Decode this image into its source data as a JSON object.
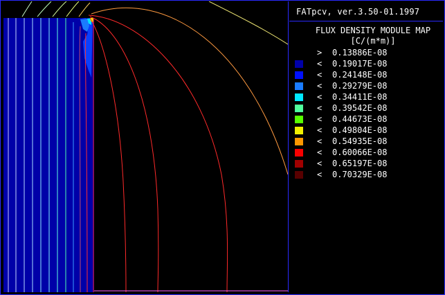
{
  "header": {
    "version": "FATpcv, ver.3.50-01.1997"
  },
  "legend": {
    "title_line1": "FLUX DENSITY MODULE MAP",
    "title_line2": "[C/(m*m)]",
    "entries": [
      {
        "op": ">",
        "value": "0.13886E-08",
        "color": ""
      },
      {
        "op": "<",
        "value": "0.19017E-08",
        "color": "#0000a8"
      },
      {
        "op": "<",
        "value": "0.24148E-08",
        "color": "#0010ff"
      },
      {
        "op": "<",
        "value": "0.29279E-08",
        "color": "#1a7cff"
      },
      {
        "op": "<",
        "value": "0.34411E-08",
        "color": "#00e8ff"
      },
      {
        "op": "<",
        "value": "0.39542E-08",
        "color": "#50ff9c"
      },
      {
        "op": "<",
        "value": "0.44673E-08",
        "color": "#58ff00"
      },
      {
        "op": "<",
        "value": "0.49804E-08",
        "color": "#f0f000"
      },
      {
        "op": "<",
        "value": "0.54935E-08",
        "color": "#ff9800"
      },
      {
        "op": "<",
        "value": "0.60066E-08",
        "color": "#f80000"
      },
      {
        "op": "<",
        "value": "0.65197E-08",
        "color": "#a00000"
      },
      {
        "op": "<",
        "value": "0.70329E-08",
        "color": "#580000"
      }
    ]
  }
}
